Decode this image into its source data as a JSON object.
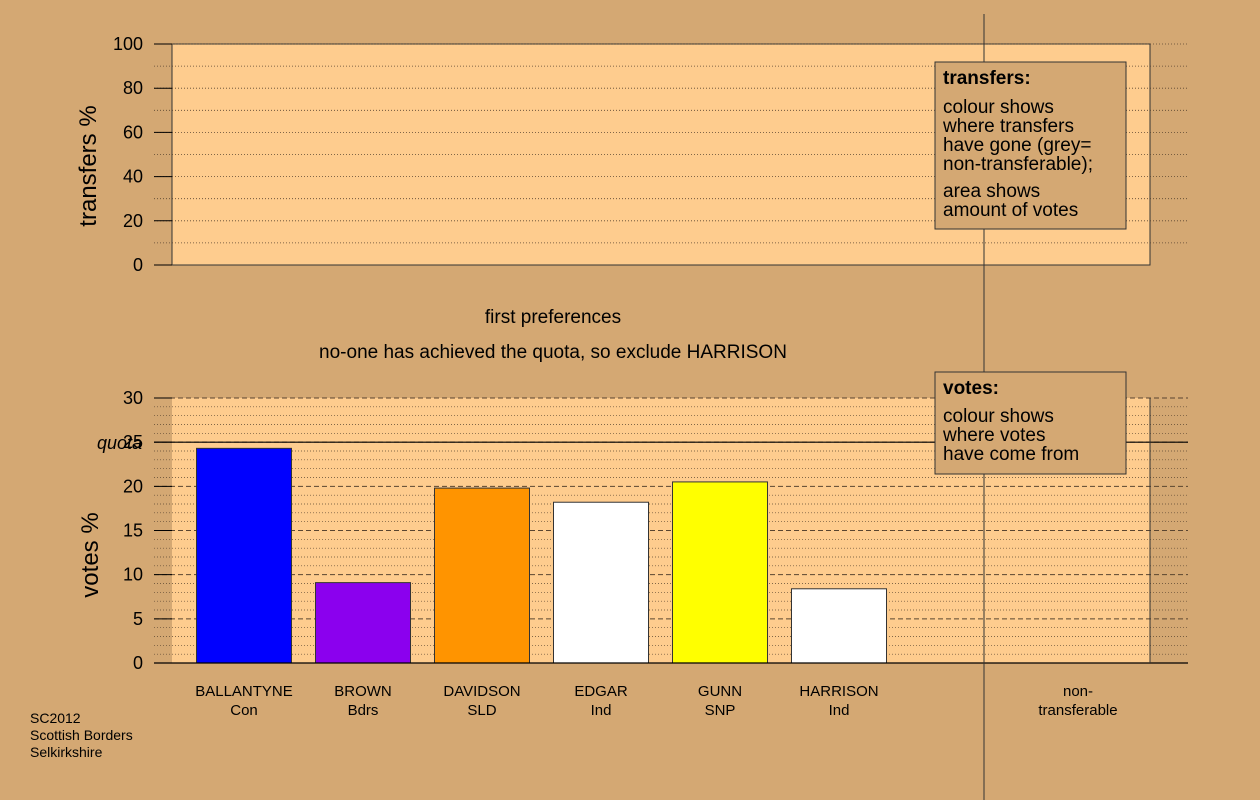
{
  "chart_data": [
    {
      "type": "bar",
      "ylabel": "transfers %",
      "ylim": [
        0,
        100
      ],
      "yticks": [
        0,
        20,
        40,
        60,
        80,
        100
      ],
      "series": [],
      "legend": {
        "title": "transfers:",
        "lines_1": [
          "colour shows",
          "where transfers",
          "have gone (grey=",
          "non-transferable);"
        ],
        "lines_2": [
          "area shows",
          "amount of votes"
        ]
      }
    },
    {
      "type": "bar",
      "ylabel": "votes %",
      "ylim": [
        0,
        30
      ],
      "yticks": [
        0,
        5,
        10,
        15,
        20,
        25,
        30
      ],
      "quota": 25,
      "quota_label": "quota",
      "categories": [
        "BALLANTYNE",
        "BROWN",
        "DAVIDSON",
        "EDGAR",
        "GUNN",
        "HARRISON",
        "non-"
      ],
      "parties": [
        "Con",
        "Bdrs",
        "SLD",
        "Ind",
        "SNP",
        "Ind",
        "transferable"
      ],
      "values": [
        24.3,
        9.1,
        19.8,
        18.2,
        20.5,
        8.4,
        0
      ],
      "colors": [
        "#0000ff",
        "#8b00ee",
        "#ff9400",
        "#ffffff",
        "#ffff00",
        "#ffffff",
        "#aaaaaa"
      ],
      "legend": {
        "title": "votes:",
        "lines": [
          "colour shows",
          "where votes",
          "have come from"
        ]
      }
    }
  ],
  "captions": {
    "stage": "first preferences",
    "message": "no-one has achieved the quota, so exclude HARRISON"
  },
  "footer": [
    "SC2012",
    "Scottish Borders",
    "Selkirkshire"
  ],
  "colors": {
    "background": "#d4a873",
    "panel": "#fecc8e"
  }
}
